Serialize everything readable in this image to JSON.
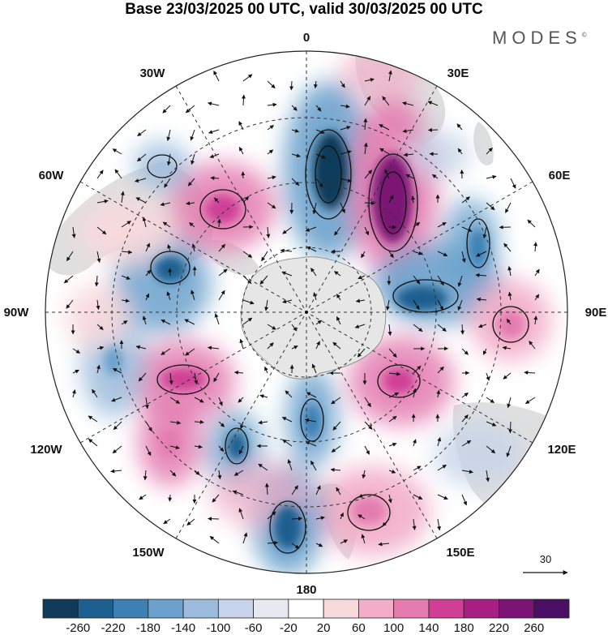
{
  "title": "Base 23/03/2025 00 UTC, valid 30/03/2025 00 UTC",
  "brand": "MODES",
  "brand_mark": "©",
  "longitude_labels": {
    "lon_0": "0",
    "lon_30e": "30E",
    "lon_60e": "60E",
    "lon_90e": "90E",
    "lon_120e": "120E",
    "lon_150e": "150E",
    "lon_180": "180",
    "lon_150w": "150W",
    "lon_120w": "120W",
    "lon_90w": "90W",
    "lon_60w": "60W",
    "lon_30w": "30W"
  },
  "reference_vector": {
    "label": "30"
  },
  "colorbar": {
    "ticks": [
      "-260",
      "-220",
      "-180",
      "-140",
      "-100",
      "-60",
      "-20",
      "20",
      "60",
      "100",
      "140",
      "180",
      "220",
      "260"
    ],
    "colors": [
      "#0f3a5a",
      "#1d5f8f",
      "#3c80b6",
      "#6ba1cc",
      "#9bbcdc",
      "#c6d3e8",
      "#e6e8f2",
      "#ffffff",
      "#f8d9dd",
      "#f2aec6",
      "#e47cb0",
      "#cf3f96",
      "#a81f82",
      "#7b1474",
      "#4a0f62"
    ]
  },
  "colors": {
    "land": "#d9d9d9",
    "antarctica": "#e6e6e6",
    "grid": "#333333",
    "arrows": "#111111"
  }
}
